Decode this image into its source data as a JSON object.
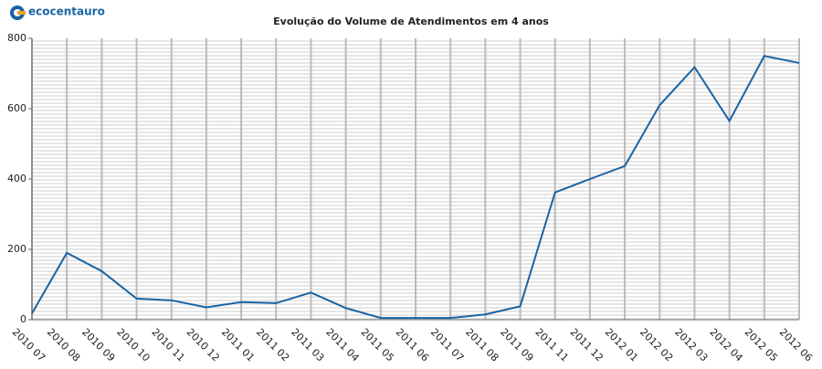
{
  "logo": "ecocentauro",
  "chart_data": {
    "type": "line",
    "title": "Evolução do Volume de Atendimentos em 4 anos",
    "categories": [
      "2010 07",
      "2010 08",
      "2010 09",
      "2010 10",
      "2010 11",
      "2010 12",
      "2011 01",
      "2011 02",
      "2011 03",
      "2011 04",
      "2011 05",
      "2011 06",
      "2011 07",
      "2011 08",
      "2011 09",
      "2011 11",
      "2011 12",
      "2012 01",
      "2012 02",
      "2012 03",
      "2012 04",
      "2012 05",
      "2012 06"
    ],
    "series": [
      {
        "name": "Atendimentos",
        "color": "#1a63a3",
        "values": [
          18,
          190,
          138,
          60,
          55,
          35,
          50,
          47,
          77,
          33,
          5,
          5,
          5,
          15,
          38,
          362,
          400,
          437,
          610,
          718,
          565,
          750,
          730
        ]
      }
    ],
    "ylim": [
      0,
      800
    ],
    "yticks": [
      0,
      200,
      400,
      600,
      800
    ],
    "grid": true
  }
}
